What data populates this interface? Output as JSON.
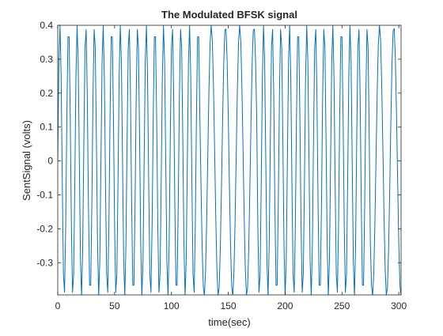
{
  "chart_data": {
    "type": "line",
    "title": "The Modulated BFSK signal",
    "xlabel": "time(sec)",
    "ylabel": "SentSignal (volts)",
    "xlim": [
      0,
      302
    ],
    "ylim": [
      -0.395,
      0.4
    ],
    "xticks": [
      0,
      50,
      100,
      150,
      200,
      250,
      300
    ],
    "yticks": [
      -0.3,
      -0.2,
      -0.1,
      0,
      0.1,
      0.2,
      0.3,
      0.4
    ],
    "xtick_labels": [
      "0",
      "50",
      "100",
      "150",
      "200",
      "250",
      "300"
    ],
    "ytick_labels": [
      "-0.3",
      "-0.2",
      "-0.1",
      "0",
      "0.1",
      "0.2",
      "0.3",
      "0.4"
    ],
    "grid": false,
    "box": true,
    "series": [
      {
        "color": "#0072BD",
        "waveform": "sine",
        "amplitude": 0.4,
        "sample_step": 1,
        "segments": [
          {
            "x_start": 0,
            "x_end": 125,
            "period": 7.6
          },
          {
            "x_start": 125,
            "x_end": 175,
            "period": 12.5
          },
          {
            "x_start": 175,
            "x_end": 275,
            "period": 7.6
          },
          {
            "x_start": 275,
            "x_end": 302,
            "period": 12.5
          }
        ]
      }
    ]
  }
}
